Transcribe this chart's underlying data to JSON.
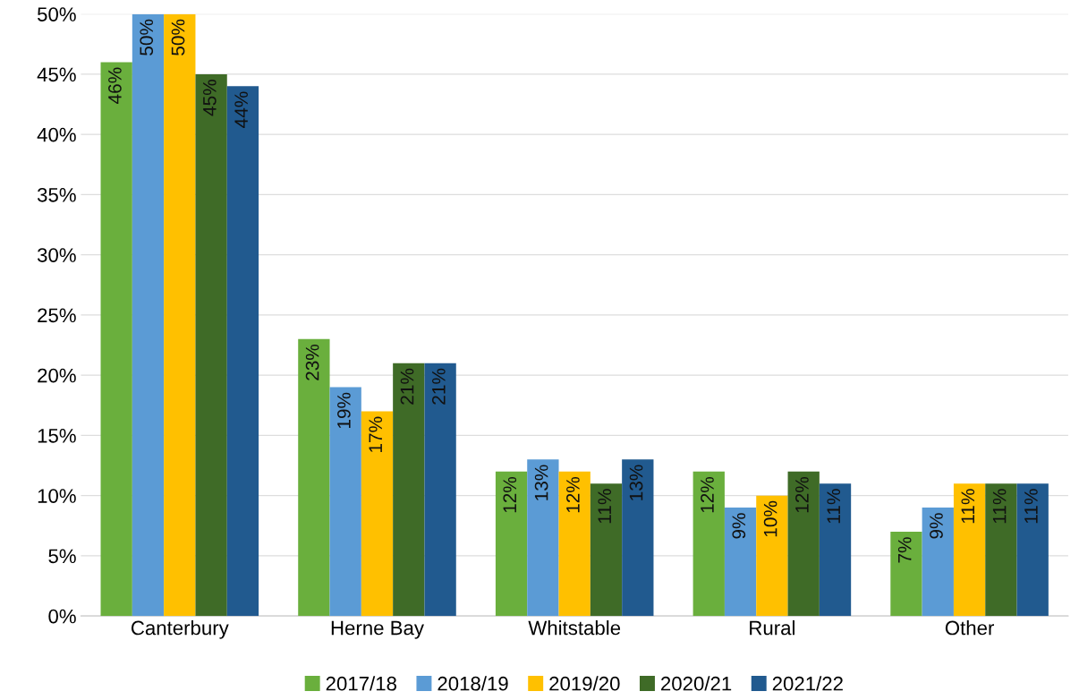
{
  "chart_data": {
    "type": "bar",
    "categories": [
      "Canterbury",
      "Herne Bay",
      "Whitstable",
      "Rural",
      "Other"
    ],
    "series": [
      {
        "name": "2017/18",
        "color": "#6aaf3d",
        "values": [
          46,
          23,
          12,
          12,
          7
        ],
        "value_labels": [
          "46%",
          "23%",
          "12%",
          "12%",
          "7%"
        ]
      },
      {
        "name": "2018/19",
        "color": "#5b9bd5",
        "values": [
          50,
          19,
          13,
          9,
          9
        ],
        "value_labels": [
          "50%",
          "19%",
          "13%",
          "9%",
          "9%"
        ]
      },
      {
        "name": "2019/20",
        "color": "#ffc000",
        "values": [
          50,
          17,
          12,
          10,
          11
        ],
        "value_labels": [
          "50%",
          "17%",
          "12%",
          "10%",
          "11%"
        ]
      },
      {
        "name": "2020/21",
        "color": "#3f6b27",
        "values": [
          45,
          21,
          11,
          12,
          11
        ],
        "value_labels": [
          "45%",
          "21%",
          "11%",
          "12%",
          "11%"
        ]
      },
      {
        "name": "2021/22",
        "color": "#215a8f",
        "values": [
          44,
          21,
          13,
          11,
          11
        ],
        "value_labels": [
          "44%",
          "21%",
          "13%",
          "11%",
          "11%"
        ]
      }
    ],
    "ylim": [
      0,
      50
    ],
    "yticks": [
      {
        "value": 0,
        "label": "0%"
      },
      {
        "value": 5,
        "label": "5%"
      },
      {
        "value": 10,
        "label": "10%"
      },
      {
        "value": 15,
        "label": "15%"
      },
      {
        "value": 20,
        "label": "20%"
      },
      {
        "value": 25,
        "label": "25%"
      },
      {
        "value": 30,
        "label": "30%"
      },
      {
        "value": 35,
        "label": "35%"
      },
      {
        "value": 40,
        "label": "40%"
      },
      {
        "value": 45,
        "label": "45%"
      },
      {
        "value": 50,
        "label": "50%"
      }
    ],
    "grid": "y",
    "legend": "bottom"
  }
}
